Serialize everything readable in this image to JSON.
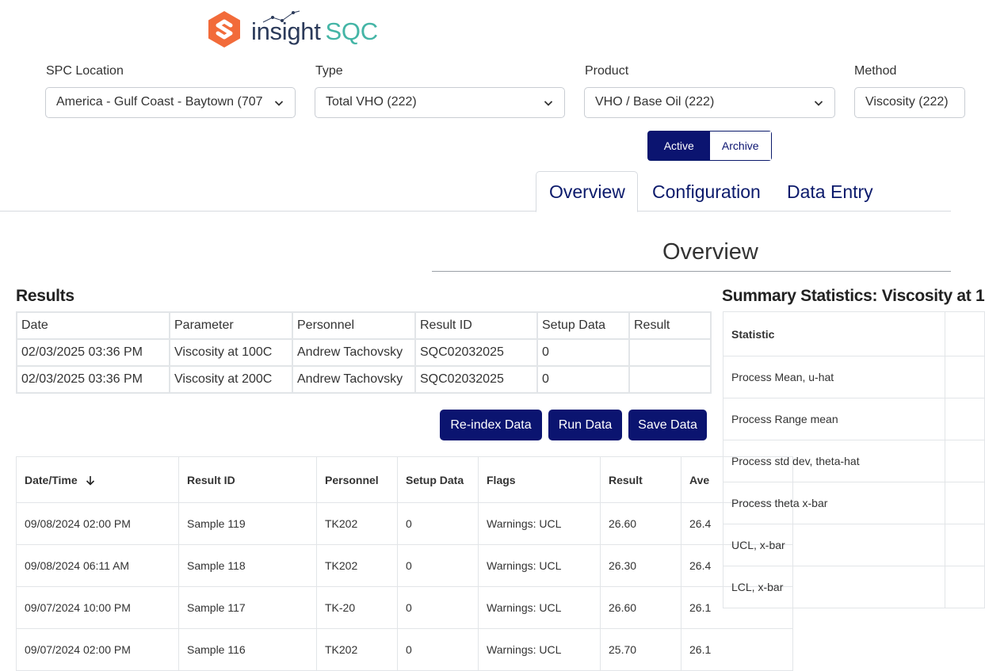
{
  "brand": {
    "name_part1": "insight",
    "name_part2": "SQC",
    "colors": {
      "orange": "#f26b3a",
      "navy": "#2b3a5a",
      "teal": "#44b5a6"
    }
  },
  "filters": {
    "spc_location": {
      "label": "SPC Location",
      "value": "America - Gulf Coast - Baytown (707"
    },
    "type": {
      "label": "Type",
      "value": "Total VHO (222)"
    },
    "product": {
      "label": "Product",
      "value": "VHO / Base Oil (222)"
    },
    "method": {
      "label": "Method",
      "value": "Viscosity (222)"
    }
  },
  "toggle": {
    "active": "Active",
    "archive": "Archive"
  },
  "tabs": {
    "overview": "Overview",
    "configuration": "Configuration",
    "data_entry": "Data Entry"
  },
  "overview_heading": "Overview",
  "results": {
    "title": "Results",
    "columns": [
      "Date",
      "Parameter",
      "Personnel",
      "Result ID",
      "Setup Data",
      "Result"
    ],
    "rows": [
      [
        "02/03/2025 03:36 PM",
        "Viscosity at 100C",
        "Andrew Tachovsky",
        "SQC02032025",
        "0",
        ""
      ],
      [
        "02/03/2025 03:36 PM",
        "Viscosity at 200C",
        "Andrew Tachovsky",
        "SQC02032025",
        "0",
        ""
      ]
    ]
  },
  "buttons": {
    "reindex": "Re-index Data",
    "run": "Run Data",
    "save": "Save Data"
  },
  "data_table": {
    "columns": [
      "Date/Time",
      "Result ID",
      "Personnel",
      "Setup Data",
      "Flags",
      "Result",
      "Ave"
    ],
    "sort_icon": "arrow-down-icon",
    "rows": [
      [
        "09/08/2024 02:00 PM",
        "Sample 119",
        "TK202",
        "0",
        "Warnings: UCL",
        "26.60",
        "26.4"
      ],
      [
        "09/08/2024 06:11 AM",
        "Sample 118",
        "TK202",
        "0",
        "Warnings: UCL",
        "26.30",
        "26.4"
      ],
      [
        "09/07/2024 10:00 PM",
        "Sample 117",
        "TK-20",
        "0",
        "Warnings: UCL",
        "26.60",
        "26.1"
      ],
      [
        "09/07/2024 02:00 PM",
        "Sample 116",
        "TK202",
        "0",
        "Warnings: UCL",
        "25.70",
        "26.1"
      ]
    ]
  },
  "summary": {
    "title": "Summary Statistics: Viscosity at 1",
    "header": "Statistic",
    "rows": [
      "Process Mean, u-hat",
      "Process Range mean",
      "Process std dev, theta-hat",
      "Process theta x-bar",
      "UCL, x-bar",
      "LCL, x-bar"
    ]
  }
}
